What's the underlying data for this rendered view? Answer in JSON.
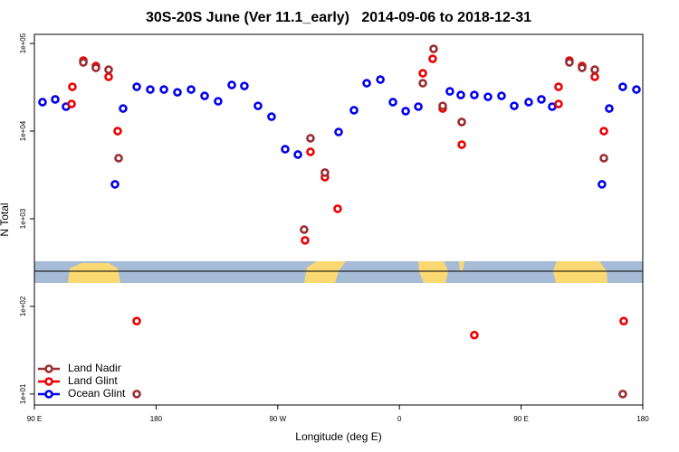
{
  "chart_data": {
    "type": "scatter",
    "title": "30S-20S June (Ver 11.1_early)   2014-09-06 to 2018-12-31",
    "xlabel": "Longitude (deg E)",
    "ylabel": "N Total",
    "xlim": [
      90,
      540
    ],
    "xticks": [
      {
        "value": 90,
        "label": "90 E"
      },
      180,
      {
        "value": 270,
        "label": "90 W"
      },
      {
        "value": 360,
        "label": "0"
      },
      {
        "value": 450,
        "label": "90 E"
      },
      {
        "value": 540,
        "label": "180"
      }
    ],
    "ylim": [
      7.5,
      127000
    ],
    "yscale": "log",
    "yticks": [
      {
        "value": 10,
        "label": "1e+01"
      },
      {
        "value": 100,
        "label": "1e+02"
      },
      {
        "value": 1000,
        "label": "1e+03"
      },
      {
        "value": 10000,
        "label": "1e+04"
      },
      {
        "value": 100000,
        "label": "1e+05"
      }
    ],
    "legend": "lower left",
    "series": [
      {
        "name": "Land Nadir",
        "color": "#9b2d30",
        "x": [
          126.2,
          135.5,
          144.9,
          152.3,
          165.7,
          289.5,
          294.2,
          304.9,
          377.3,
          385.3,
          392.0,
          406.1,
          485.7,
          495.1,
          504.5,
          511.2,
          525.2
        ],
        "values": [
          60800,
          52700,
          50200,
          4910,
          10,
          752,
          8280,
          3360,
          35200,
          86700,
          19400,
          12700,
          60800,
          52700,
          50200,
          4910,
          10
        ]
      },
      {
        "name": "Land Glint",
        "color": "#ee0000",
        "x": [
          117.5,
          118.1,
          126.2,
          135.5,
          144.9,
          151.6,
          165.7,
          290.2,
          294.2,
          304.9,
          314.3,
          377.3,
          384.6,
          392.0,
          406.1,
          415.4,
          477.7,
          477.7,
          485.7,
          495.1,
          504.5,
          511.2,
          525.9
        ],
        "values": [
          20400,
          32000,
          63700,
          55200,
          41600,
          10000,
          68,
          567,
          5800,
          2980,
          1300,
          45700,
          66800,
          18100,
          7000,
          47,
          20400,
          32000,
          63700,
          55200,
          41600,
          10000,
          68
        ]
      },
      {
        "name": "Ocean Glint",
        "color": "#0000ee",
        "x": [
          96.0,
          105.4,
          113.4,
          149.6,
          155.6,
          165.7,
          175.7,
          185.8,
          195.8,
          205.9,
          215.9,
          225.9,
          236.0,
          245.3,
          255.4,
          265.4,
          275.5,
          284.9,
          315.0,
          326.4,
          335.8,
          345.9,
          355.2,
          364.6,
          374.0,
          397.3,
          405.4,
          415.4,
          425.5,
          435.5,
          444.9,
          455.6,
          465.0,
          473.0,
          509.8,
          515.2,
          525.2,
          535.3
        ],
        "values": [
          21400,
          23000,
          19000,
          2470,
          18100,
          32000,
          29800,
          29800,
          27700,
          29800,
          25200,
          21900,
          33600,
          32700,
          19400,
          14600,
          6220,
          5400,
          9770,
          17300,
          35200,
          38700,
          21400,
          16900,
          19000,
          28400,
          25800,
          25800,
          24600,
          25200,
          19400,
          21400,
          23000,
          19000,
          2470,
          18100,
          32000,
          29800
        ]
      }
    ]
  }
}
